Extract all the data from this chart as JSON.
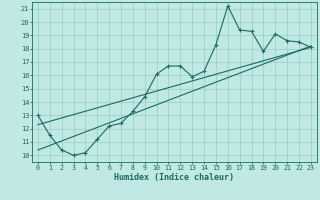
{
  "xlabel": "Humidex (Indice chaleur)",
  "bg_color": "#c0e8e4",
  "grid_color": "#96ccc8",
  "line_color": "#1a6b60",
  "x_data": [
    0,
    1,
    2,
    3,
    4,
    5,
    6,
    7,
    8,
    9,
    10,
    11,
    12,
    13,
    14,
    15,
    16,
    17,
    18,
    19,
    20,
    21,
    22,
    23
  ],
  "series1": [
    13.0,
    11.5,
    10.4,
    10.0,
    10.2,
    11.2,
    12.2,
    12.4,
    13.3,
    14.4,
    16.1,
    16.7,
    16.7,
    15.9,
    16.3,
    18.3,
    21.2,
    19.4,
    19.3,
    17.8,
    19.1,
    18.6,
    18.5,
    18.1
  ],
  "reg_line1_x": [
    0,
    23
  ],
  "reg_line1_y": [
    10.4,
    18.2
  ],
  "reg_line2_x": [
    0,
    23
  ],
  "reg_line2_y": [
    12.3,
    18.1
  ],
  "ylim": [
    9.5,
    21.5
  ],
  "xlim": [
    -0.5,
    23.5
  ],
  "yticks": [
    10,
    11,
    12,
    13,
    14,
    15,
    16,
    17,
    18,
    19,
    20,
    21
  ],
  "xticks": [
    0,
    1,
    2,
    3,
    4,
    5,
    6,
    7,
    8,
    9,
    10,
    11,
    12,
    13,
    14,
    15,
    16,
    17,
    18,
    19,
    20,
    21,
    22,
    23
  ]
}
